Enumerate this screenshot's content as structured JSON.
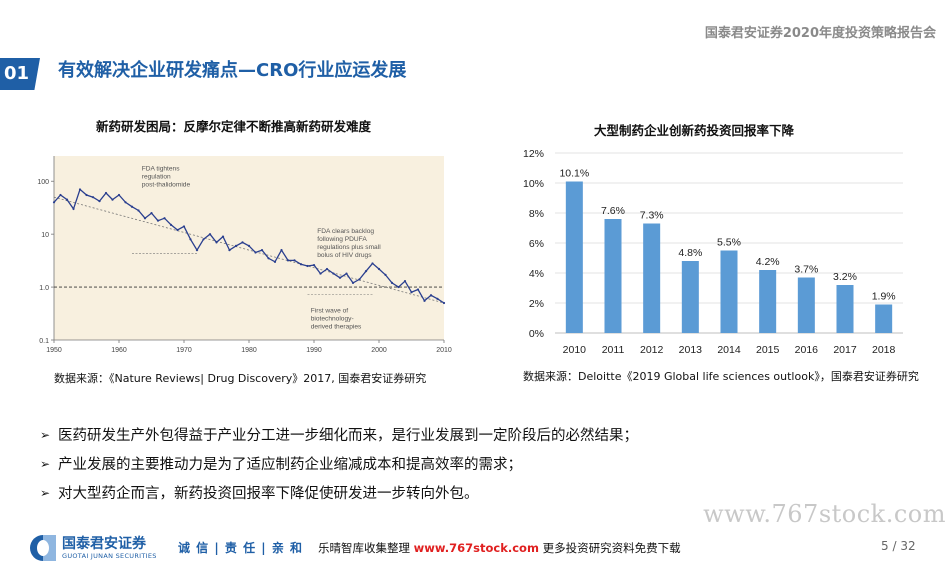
{
  "header": {
    "report_title": "国泰君安证券2020年度投资策略报告会"
  },
  "section": {
    "number": "01",
    "title": "有效解决企业研发痛点—CRO行业应运发展"
  },
  "left_chart": {
    "title": "新药研发困局：反摩尔定律不断推高新药研发难度",
    "source": "数据来源：《Nature Reviews| Drug Discovery》2017, 国泰君安证券研究",
    "chart_data": {
      "type": "line",
      "y_scale": "log",
      "ylim": [
        0.1,
        300
      ],
      "yticks": [
        "100",
        "10",
        "1.0",
        "0.1"
      ],
      "xlim": [
        1950,
        2010
      ],
      "xticks": [
        "1950",
        "1960",
        "1970",
        "1980",
        "1990",
        "2000",
        "2010"
      ],
      "series": [
        {
          "x": [
            1950,
            1951,
            1952,
            1953,
            1954,
            1955,
            1956,
            1957,
            1958,
            1959,
            1960,
            1961,
            1962,
            1963,
            1964,
            1965,
            1966,
            1967,
            1968,
            1969,
            1970,
            1971,
            1972,
            1973,
            1974,
            1975,
            1976,
            1977,
            1978,
            1979,
            1980,
            1981,
            1982,
            1983,
            1984,
            1985,
            1986,
            1987,
            1988,
            1989,
            1990,
            1991,
            1992,
            1993,
            1994,
            1995,
            1996,
            1997,
            1998,
            1999,
            2000,
            2001,
            2002,
            2003,
            2004,
            2005,
            2006,
            2007,
            2008,
            2009,
            2010
          ],
          "y": [
            40,
            55,
            45,
            30,
            70,
            55,
            50,
            42,
            60,
            45,
            55,
            40,
            33,
            28,
            20,
            25,
            18,
            20,
            15,
            12,
            14,
            8,
            5,
            8,
            10,
            7,
            9,
            5,
            6,
            7,
            6,
            4.5,
            5,
            3.5,
            3,
            5,
            3.2,
            3.2,
            2.7,
            2.5,
            2.6,
            1.8,
            2.2,
            1.8,
            1.5,
            1.8,
            1.2,
            1.4,
            2.0,
            2.8,
            2.2,
            1.7,
            1.2,
            1.0,
            1.3,
            0.8,
            0.9,
            0.55,
            0.7,
            0.6,
            0.5
          ]
        }
      ],
      "trend_line": {
        "from": [
          1950,
          50
        ],
        "to": [
          2010,
          0.5
        ]
      },
      "reference_line_y": 1.0,
      "annotations": [
        "FDA tightens regulation post-thalidomide",
        "FDA clears backlog following PDUFA regulations plus small bolus of HIV drugs",
        "First wave of biotechnology-derived therapies"
      ]
    }
  },
  "right_chart": {
    "title": "大型制药企业创新药投资回报率下降",
    "source": "数据来源：Deloitte《2019 Global life sciences outlook》，国泰君安证券研究",
    "chart_data": {
      "type": "bar",
      "categories": [
        "2010",
        "2011",
        "2012",
        "2013",
        "2014",
        "2015",
        "2016",
        "2017",
        "2018"
      ],
      "values": [
        10.1,
        7.6,
        7.3,
        4.8,
        5.5,
        4.2,
        3.7,
        3.2,
        1.9
      ],
      "labels": [
        "10.1%",
        "7.6%",
        "7.3%",
        "4.8%",
        "5.5%",
        "4.2%",
        "3.7%",
        "3.2%",
        "1.9%"
      ],
      "yticks": [
        "0%",
        "2%",
        "4%",
        "6%",
        "8%",
        "10%",
        "12%"
      ],
      "ylim": [
        0,
        12
      ],
      "bar_color": "#5b9bd5",
      "grid": true
    }
  },
  "bullets": [
    "医药研发生产外包得益于产业分工进一步细化而来，是行业发展到一定阶段后的必然结果；",
    "产业发展的主要推动力是为了适应制药企业缩减成本和提高效率的需求；",
    "对大型药企而言，新药投资回报率下降促使研发进一步转向外包。"
  ],
  "bullet_marker": "➢",
  "watermark": "www.767stock.com",
  "footer": {
    "logo_cn": "国泰君安证券",
    "logo_en": "GUOTAI JUNAN SECURITIES",
    "slogan": "诚 信 | 责 任 | 亲 和",
    "promo_prefix": "乐晴智库收集整理 ",
    "promo_url": "www.767stock.com",
    "promo_suffix": " 更多投资研究资料免费下载",
    "page": "5",
    "total": "/ 32"
  }
}
